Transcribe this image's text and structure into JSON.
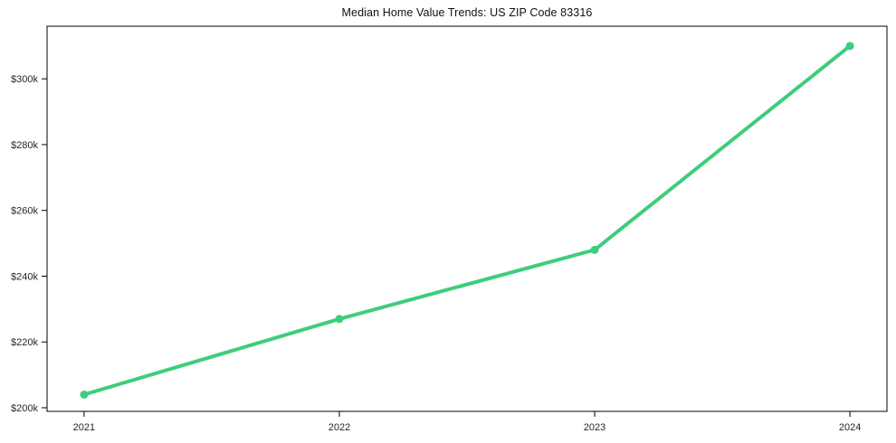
{
  "chart_data": {
    "type": "line",
    "title": "Median Home Value Trends: US ZIP Code 83316",
    "x": [
      2021,
      2022,
      2023,
      2024
    ],
    "x_tick_labels": [
      "2021",
      "2022",
      "2023",
      "2024"
    ],
    "series": [
      {
        "name": "Median Home Value",
        "values": [
          204000,
          227000,
          248000,
          310000
        ],
        "color": "#3dcd7d",
        "marker": "circle"
      }
    ],
    "y_ticks": [
      200000,
      220000,
      240000,
      260000,
      280000,
      300000
    ],
    "y_tick_labels": [
      "$200k",
      "$220k",
      "$240k",
      "$260k",
      "$280k",
      "$300k"
    ],
    "xlabel": "",
    "ylabel": "",
    "xlim": [
      2020.855,
      2024.145
    ],
    "ylim": [
      198900,
      316000
    ],
    "grid": false,
    "legend_position": "none",
    "background_color": "#ffffff",
    "axis_color": "#000000",
    "tick_label_color": "#262626",
    "title_color": "#111111"
  }
}
